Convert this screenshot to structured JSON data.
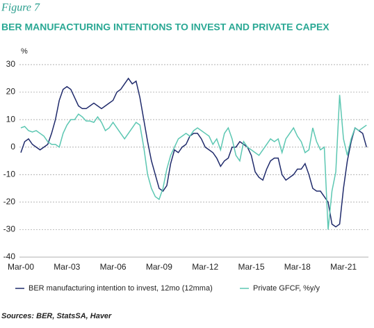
{
  "figure_label": "Figure 7",
  "source": "Sources: BER, StatsSA, Haver",
  "chart_data": {
    "type": "line",
    "title": "BER MANUFACTURING INTENTIONS TO INVEST AND PRIVATE CAPEX",
    "y_label": "%",
    "categories": [
      "Mar-00",
      null,
      null,
      null,
      null,
      null,
      null,
      null,
      null,
      null,
      null,
      null,
      "Mar-03",
      null,
      null,
      null,
      null,
      null,
      null,
      null,
      null,
      null,
      null,
      null,
      "Mar-06",
      null,
      null,
      null,
      null,
      null,
      null,
      null,
      null,
      null,
      null,
      null,
      "Mar-09",
      null,
      null,
      null,
      null,
      null,
      null,
      null,
      null,
      null,
      null,
      null,
      "Mar-12",
      null,
      null,
      null,
      null,
      null,
      null,
      null,
      null,
      null,
      null,
      null,
      "Mar-15",
      null,
      null,
      null,
      null,
      null,
      null,
      null,
      null,
      null,
      null,
      null,
      "Mar-18",
      null,
      null,
      null,
      null,
      null,
      null,
      null,
      null,
      null,
      null,
      null,
      "Mar-21",
      null,
      null,
      null,
      null,
      null,
      null
    ],
    "series": [
      {
        "name": "BER manufacturing intention to invest, 12mo (12mma)",
        "color": "#1f2a6b",
        "values": [
          -2,
          2,
          3,
          1,
          0,
          -1,
          0,
          1,
          5,
          10,
          17,
          21,
          22,
          21,
          18,
          15,
          14,
          14,
          15,
          16,
          15,
          14,
          15,
          16,
          17,
          20,
          21,
          23,
          25,
          23,
          24,
          18,
          10,
          2,
          -5,
          -10,
          -15,
          -16,
          -14,
          -6,
          -1,
          -2,
          0,
          1,
          4,
          5,
          5,
          3,
          0,
          -1,
          -2,
          -4,
          -7,
          -5,
          -4,
          0,
          0,
          2,
          1,
          0,
          -3,
          -9,
          -11,
          -12,
          -8,
          -5,
          -4,
          -4,
          -10,
          -12,
          -11,
          -10,
          -8,
          -8,
          -6,
          -10,
          -15,
          -16,
          -16,
          -18,
          -20,
          -28,
          -29,
          -28,
          -15,
          -5,
          2,
          7,
          6,
          5,
          0
        ]
      },
      {
        "name": "Private GFCF, %y/y",
        "color": "#5cc7b2",
        "values": [
          7,
          7.5,
          6,
          5.5,
          6,
          5,
          4,
          2,
          1,
          1,
          0,
          5,
          8,
          10,
          10,
          12,
          11,
          9.5,
          9.5,
          9,
          11,
          9,
          6,
          7,
          9,
          7,
          5,
          3,
          5,
          7,
          9,
          8,
          0,
          -10,
          -15,
          -18,
          -19,
          -15,
          -8,
          -3,
          0,
          3,
          4,
          5,
          4,
          6,
          7,
          6,
          5,
          4,
          1,
          3,
          -1,
          5,
          7,
          3,
          -3,
          -5,
          2,
          0,
          -1,
          -2,
          -3,
          -1,
          1,
          3,
          2,
          3,
          -2,
          3,
          5,
          7,
          4,
          2,
          -2,
          -1,
          7,
          2,
          -1,
          0,
          -30,
          -16,
          -9,
          19,
          3,
          -3,
          3,
          7,
          6,
          7,
          8
        ]
      }
    ],
    "ylim": [
      -40,
      30
    ],
    "yticks": [
      -40,
      -30,
      -20,
      -10,
      0,
      10,
      20,
      30
    ],
    "grid": true
  }
}
